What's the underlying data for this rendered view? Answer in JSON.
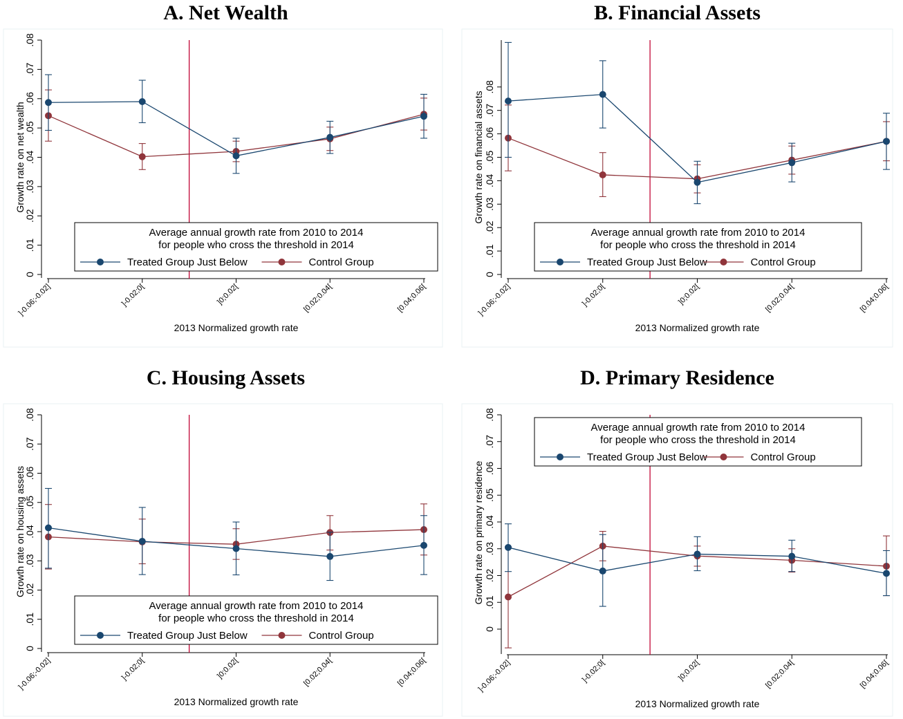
{
  "colors": {
    "treated": "#1a476f",
    "control": "#90353b",
    "threshold": "#c10534",
    "frame": "#eaf2f3",
    "axis": "#000000"
  },
  "chart_data": [
    {
      "type": "line",
      "title": "A. Net Wealth",
      "xlabel": "2013 Normalized growth rate",
      "ylabel": "Growth rate on net wealth",
      "categories": [
        "]-0.06;-0.02]",
        "]-0.02;0[",
        "]0;0.02[",
        "[0.02;0.04[",
        "[0.04;0.06["
      ],
      "yticks": [
        "0",
        ".01",
        ".02",
        ".03",
        ".04",
        ".05",
        ".06",
        ".07",
        ".08"
      ],
      "ylim": [
        0,
        0.08
      ],
      "grid": false,
      "threshold_x": 1.5,
      "legend": {
        "title_line1": "Average annual growth rate from 2010 to 2014",
        "title_line2": "for people who cross the threshold in 2014",
        "position": "bottom",
        "labels": [
          "Treated Group Just Below",
          "Control Group"
        ]
      },
      "series": [
        {
          "name": "Treated Group Just Below",
          "values": [
            0.0587,
            0.059,
            0.0405,
            0.0468,
            0.054
          ],
          "ci_low": [
            0.0492,
            0.0518,
            0.0345,
            0.0413,
            0.0465
          ],
          "ci_high": [
            0.0682,
            0.0663,
            0.0465,
            0.0523,
            0.0615
          ]
        },
        {
          "name": "Control Group",
          "values": [
            0.0542,
            0.0402,
            0.042,
            0.0463,
            0.0547
          ],
          "ci_low": [
            0.0455,
            0.0358,
            0.0385,
            0.0423,
            0.0493
          ],
          "ci_high": [
            0.063,
            0.0447,
            0.0455,
            0.0503,
            0.0602
          ]
        }
      ]
    },
    {
      "type": "line",
      "title": "B. Financial Assets",
      "xlabel": "2013 Normalized growth rate",
      "ylabel": "Growth rate on financial assets",
      "categories": [
        "]-0.06;-0.02]",
        "]-0.02;0[",
        "]0;0.02[",
        "[0.02;0.04[",
        "[0.04;0.06["
      ],
      "yticks": [
        "0",
        ".01",
        ".02",
        ".03",
        ".04",
        ".05",
        ".06",
        ".07",
        ".08"
      ],
      "ylim": [
        0,
        0.1
      ],
      "grid": false,
      "threshold_x": 1.5,
      "legend": {
        "title_line1": "Average annual growth rate from 2010 to 2014",
        "title_line2": "for people who cross the threshold in 2014",
        "position": "bottom",
        "labels": [
          "Treated Group Just Below",
          "Control Group"
        ]
      },
      "series": [
        {
          "name": "Treated Group Just Below",
          "values": [
            0.074,
            0.0768,
            0.0393,
            0.0477,
            0.0568
          ],
          "ci_low": [
            0.05,
            0.0625,
            0.0302,
            0.0395,
            0.0448
          ],
          "ci_high": [
            0.099,
            0.0912,
            0.0483,
            0.056,
            0.0688
          ]
        },
        {
          "name": "Control Group",
          "values": [
            0.0582,
            0.0425,
            0.0408,
            0.0488,
            0.0568
          ],
          "ci_low": [
            0.0442,
            0.0332,
            0.0348,
            0.0428,
            0.0485
          ],
          "ci_high": [
            0.0723,
            0.052,
            0.0468,
            0.0548,
            0.0652
          ]
        }
      ]
    },
    {
      "type": "line",
      "title": "C. Housing Assets",
      "xlabel": "2013 Normalized growth rate",
      "ylabel": "Growth rate on housing assets",
      "categories": [
        "]-0.06;-0.02]",
        "]-0.02;0[",
        "]0;0.02[",
        "[0.02;0.04[",
        "[0.04;0.06["
      ],
      "yticks": [
        "0",
        ".01",
        ".02",
        ".03",
        ".04",
        ".05",
        ".06",
        ".07",
        ".08"
      ],
      "ylim": [
        0,
        0.08
      ],
      "grid": false,
      "threshold_x": 1.5,
      "legend": {
        "title_line1": "Average annual growth rate from 2010 to 2014",
        "title_line2": "for people who cross the threshold in 2014",
        "position": "bottom",
        "labels": [
          "Treated Group Just Below",
          "Control Group"
        ]
      },
      "series": [
        {
          "name": "Treated Group Just Below",
          "values": [
            0.0413,
            0.0367,
            0.0342,
            0.0315,
            0.0353
          ],
          "ci_low": [
            0.0275,
            0.0253,
            0.0252,
            0.0233,
            0.0253
          ],
          "ci_high": [
            0.0548,
            0.0483,
            0.0433,
            0.0398,
            0.0455
          ]
        },
        {
          "name": "Control Group",
          "values": [
            0.0382,
            0.0365,
            0.0357,
            0.0397,
            0.0407
          ],
          "ci_low": [
            0.0272,
            0.029,
            0.0305,
            0.0337,
            0.032
          ],
          "ci_high": [
            0.0493,
            0.0443,
            0.041,
            0.0455,
            0.0495
          ]
        }
      ]
    },
    {
      "type": "line",
      "title": "D. Primary Residence",
      "xlabel": "2013 Normalized growth rate",
      "ylabel": "Growth rate on primary residence",
      "categories": [
        "]-0.06;-0.02]",
        "]-0.02;0[",
        "]0;0.02[",
        "[0.02;0.04[",
        "[0.04;0.06["
      ],
      "yticks": [
        "0",
        ".01",
        ".02",
        ".03",
        ".04",
        ".05",
        ".06",
        ".07",
        ".08"
      ],
      "ylim": [
        -0.008,
        0.08
      ],
      "grid": false,
      "threshold_x": 1.5,
      "legend": {
        "title_line1": "Average annual growth rate from 2010 to 2014",
        "title_line2": "for people who cross the threshold in 2014",
        "position": "top",
        "labels": [
          "Treated Group Just Below",
          "Control Group"
        ]
      },
      "series": [
        {
          "name": "Treated Group Just Below",
          "values": [
            0.0305,
            0.0217,
            0.028,
            0.0272,
            0.0208
          ],
          "ci_low": [
            0.0215,
            0.0085,
            0.0218,
            0.0215,
            0.0125
          ],
          "ci_high": [
            0.0393,
            0.0353,
            0.0345,
            0.0332,
            0.0293
          ]
        },
        {
          "name": "Control Group",
          "values": [
            0.012,
            0.031,
            0.0273,
            0.0257,
            0.0235
          ],
          "ci_low": [
            -0.007,
            0.0255,
            0.0235,
            0.0213,
            0.0125
          ],
          "ci_high": [
            0.0307,
            0.0365,
            0.031,
            0.03,
            0.0348
          ]
        }
      ]
    }
  ]
}
